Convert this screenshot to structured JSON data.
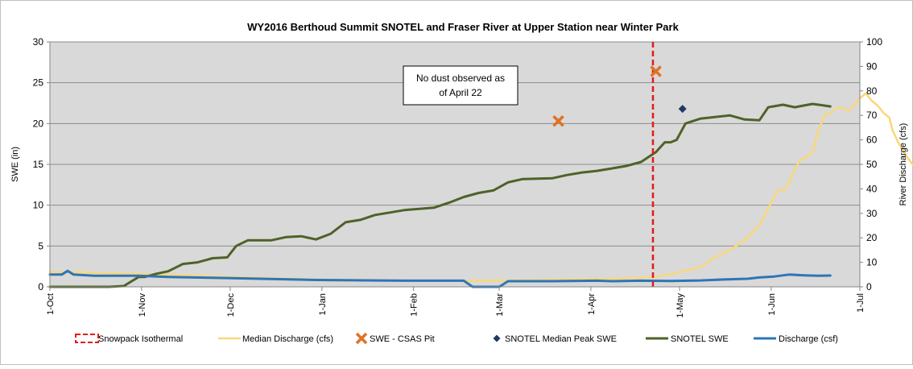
{
  "chart_data": {
    "type": "line",
    "title": "WY2016 Berthoud Summit SNOTEL and Fraser River at Upper Station near Winter Park",
    "ylabel": "SWE (in)",
    "y2label": "River Discharge (cfs)",
    "ylim": [
      0,
      30
    ],
    "y2lim": [
      0,
      100
    ],
    "yticks": [
      0,
      5,
      10,
      15,
      20,
      25,
      30
    ],
    "y2ticks": [
      0,
      10,
      20,
      30,
      40,
      50,
      60,
      70,
      80,
      90,
      100
    ],
    "x_tick_labels": [
      "1-Oct",
      "1-Nov",
      "1-Dec",
      "1-Jan",
      "1-Feb",
      "1-Mar",
      "1-Apr",
      "1-May",
      "1-Jun",
      "1-Jul"
    ],
    "x_tick_days": [
      0,
      31,
      61,
      92,
      123,
      152,
      183,
      213,
      244,
      274
    ],
    "grid": true,
    "plot_background": "#d9d9d9",
    "legend_position": "bottom",
    "annotation": {
      "text": "No dust observed as of April 22",
      "lines": [
        "No dust observed as",
        "of April 22"
      ]
    },
    "series": [
      {
        "name": "Snowpack Isothermal",
        "style": "vertical-dashed-line",
        "color": "#e31a1c",
        "x_day": 204
      },
      {
        "name": "Median Discharge (cfs)",
        "axis": "right",
        "color": "#fad77a",
        "points": [
          [
            0,
            6
          ],
          [
            10,
            6
          ],
          [
            20,
            5.5
          ],
          [
            40,
            5
          ],
          [
            60,
            4
          ],
          [
            90,
            3
          ],
          [
            120,
            2.5
          ],
          [
            150,
            2.5
          ],
          [
            175,
            3
          ],
          [
            195,
            3.5
          ],
          [
            205,
            4
          ],
          [
            215,
            6.5
          ],
          [
            220,
            8
          ],
          [
            225,
            12
          ],
          [
            230,
            15
          ],
          [
            235,
            19
          ],
          [
            240,
            25
          ],
          [
            243,
            32
          ],
          [
            246,
            39
          ],
          [
            249,
            40
          ],
          [
            252,
            48
          ],
          [
            254,
            52
          ],
          [
            256,
            53
          ],
          [
            258,
            55
          ],
          [
            260,
            64
          ],
          [
            262,
            70
          ],
          [
            264,
            71
          ],
          [
            266,
            73
          ],
          [
            268,
            73
          ],
          [
            270,
            72
          ],
          [
            272,
            74
          ],
          [
            274,
            77
          ],
          [
            276,
            79
          ],
          [
            278,
            76
          ],
          [
            280,
            74
          ],
          [
            282,
            71
          ],
          [
            284,
            69
          ],
          [
            285,
            64
          ],
          [
            287,
            59
          ],
          [
            290,
            53
          ],
          [
            293,
            48
          ],
          [
            294,
            46
          ]
        ]
      },
      {
        "name": "SWE - CSAS Pit",
        "axis": "left",
        "color": "#e07224",
        "marker": "x",
        "points": [
          [
            172,
            20.3
          ],
          [
            205,
            26.4
          ]
        ]
      },
      {
        "name": "SNOTEL Median Peak SWE",
        "axis": "left",
        "color": "#1f3864",
        "marker": "diamond",
        "points": [
          [
            214,
            21.8
          ]
        ]
      },
      {
        "name": "SNOTEL SWE",
        "axis": "left",
        "color": "#4f6228",
        "points": [
          [
            0,
            0
          ],
          [
            20,
            0
          ],
          [
            25,
            0.1
          ],
          [
            30,
            1.2
          ],
          [
            32,
            1.2
          ],
          [
            36,
            1.6
          ],
          [
            40,
            1.9
          ],
          [
            45,
            2.8
          ],
          [
            50,
            3.0
          ],
          [
            55,
            3.5
          ],
          [
            60,
            3.6
          ],
          [
            63,
            5.0
          ],
          [
            67,
            5.7
          ],
          [
            75,
            5.7
          ],
          [
            80,
            6.1
          ],
          [
            85,
            6.2
          ],
          [
            90,
            5.8
          ],
          [
            95,
            6.5
          ],
          [
            100,
            7.9
          ],
          [
            105,
            8.2
          ],
          [
            110,
            8.8
          ],
          [
            115,
            9.1
          ],
          [
            120,
            9.4
          ],
          [
            130,
            9.7
          ],
          [
            135,
            10.3
          ],
          [
            140,
            11.0
          ],
          [
            145,
            11.5
          ],
          [
            150,
            11.8
          ],
          [
            155,
            12.8
          ],
          [
            160,
            13.2
          ],
          [
            170,
            13.3
          ],
          [
            175,
            13.7
          ],
          [
            180,
            14.0
          ],
          [
            185,
            14.2
          ],
          [
            190,
            14.5
          ],
          [
            195,
            14.8
          ],
          [
            200,
            15.3
          ],
          [
            205,
            16.5
          ],
          [
            208,
            17.7
          ],
          [
            210,
            17.7
          ],
          [
            212,
            18.0
          ],
          [
            215,
            20.0
          ],
          [
            220,
            20.6
          ],
          [
            225,
            20.8
          ],
          [
            230,
            21.0
          ],
          [
            235,
            20.5
          ],
          [
            240,
            20.4
          ],
          [
            243,
            22.0
          ],
          [
            248,
            22.3
          ],
          [
            252,
            22.0
          ],
          [
            255,
            22.2
          ],
          [
            258,
            22.4
          ],
          [
            262,
            22.2
          ],
          [
            264,
            22.1
          ]
        ]
      },
      {
        "name": "Discharge (csf)",
        "axis": "right",
        "color": "#2e75b6",
        "points": [
          [
            0,
            5
          ],
          [
            4,
            5
          ],
          [
            6,
            6.5
          ],
          [
            8,
            5
          ],
          [
            15,
            4.5
          ],
          [
            25,
            4.5
          ],
          [
            30,
            4.5
          ],
          [
            40,
            4
          ],
          [
            60,
            3.6
          ],
          [
            90,
            2.8
          ],
          [
            120,
            2.5
          ],
          [
            140,
            2.5
          ],
          [
            143,
            0
          ],
          [
            152,
            0
          ],
          [
            155,
            2.3
          ],
          [
            170,
            2.3
          ],
          [
            185,
            2.5
          ],
          [
            190,
            2.3
          ],
          [
            200,
            2.5
          ],
          [
            210,
            2.4
          ],
          [
            220,
            2.6
          ],
          [
            228,
            3.0
          ],
          [
            236,
            3.3
          ],
          [
            240,
            3.8
          ],
          [
            245,
            4.2
          ],
          [
            250,
            5.0
          ],
          [
            255,
            4.7
          ],
          [
            260,
            4.5
          ],
          [
            264,
            4.6
          ]
        ]
      }
    ]
  }
}
